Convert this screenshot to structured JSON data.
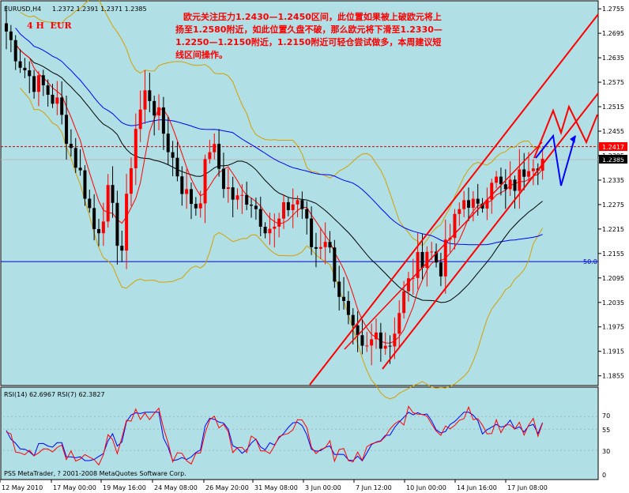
{
  "header": {
    "symbol": "EURUSD,H4",
    "ohlc": "1.2372 1.2391 1.2371 1.2385",
    "timeframe_label": "4 H  EUR"
  },
  "annotation": {
    "lines": [
      "欧元关注压力1.2430—1.2450区间，此位置如果被上破欧元将上",
      "扬至1.2580附近，如此位置久盘不破，那么欧元将下滑至1.2330—",
      "1.2250—1.2150附近，1.2150附近可轻仓尝试做多，本周建议短",
      "线区间操作。"
    ]
  },
  "rsi_panel": {
    "label": "RSI(14) 62.6967  RSI(7) 62.3827",
    "levels": [
      "70",
      "55",
      "30",
      "0"
    ]
  },
  "footer": {
    "copyright": "PSS MetaTrader, ? 2001-2008 MetaQuotes Software Corp."
  },
  "level_label": "50.0",
  "price_badges": {
    "current": "1.2417",
    "last": "1.2385"
  },
  "colors": {
    "background": "#b0e0e6",
    "bull_candle": "#ff0000",
    "bear_candle": "#000000",
    "channel": "#ff0000",
    "ma_blue": "#0000ff",
    "ma_black": "#000000",
    "ma_red": "#ff0000",
    "bollinger": "#d4a000",
    "forecast_red": "#ff0000",
    "forecast_blue": "#0000ff",
    "rsi14": "#0000ff",
    "rsi7": "#ff0000"
  },
  "chart_data": {
    "type": "candlestick",
    "symbol": "EURUSD",
    "timeframe": "H4",
    "y_ticks": [
      "1.2755",
      "1.2695",
      "1.2635",
      "1.2575",
      "1.2515",
      "1.2455",
      "1.2395",
      "1.2335",
      "1.2275",
      "1.2215",
      "1.2155",
      "1.2095",
      "1.2035",
      "1.1975",
      "1.1915",
      "1.1855"
    ],
    "ylim": [
      1.1835,
      1.2765
    ],
    "x_ticks": [
      "12 May 2010",
      "17 May 00:00",
      "19 May 16:00",
      "24 May 08:00",
      "26 May 20:00",
      "31 May 08:00",
      "3 Jun 00:00",
      "7 Jun 12:00",
      "10 Jun 00:00",
      "14 Jun 16:00",
      "17 Jun 08:00"
    ],
    "bars": 117,
    "key_closes": [
      1.27,
      1.263,
      1.258,
      1.256,
      1.252,
      1.242,
      1.233,
      1.22,
      1.23,
      1.215,
      1.245,
      1.256,
      1.248,
      1.239,
      1.23,
      1.227,
      1.243,
      1.233,
      1.228,
      1.23,
      1.224,
      1.221,
      1.227,
      1.229,
      1.216,
      1.22,
      1.207,
      1.196,
      1.19,
      1.196,
      1.193,
      1.204,
      1.212,
      1.217,
      1.212,
      1.222,
      1.23,
      1.225,
      1.235,
      1.23,
      1.233,
      1.239,
      1.2385
    ],
    "horizontal_lines": [
      {
        "value": 1.2417,
        "style": "dashed",
        "color": "#cc0000"
      },
      {
        "value": 1.2385,
        "style": "solid",
        "color": "#bbbbbb"
      },
      {
        "value": 1.2135,
        "style": "solid",
        "color": "#0000cc"
      }
    ],
    "rsi": {
      "series": [
        {
          "name": "RSI(14)",
          "last": 62.6967
        },
        {
          "name": "RSI(7)",
          "last": 62.3827
        }
      ],
      "levels": [
        70,
        55,
        30
      ]
    }
  }
}
